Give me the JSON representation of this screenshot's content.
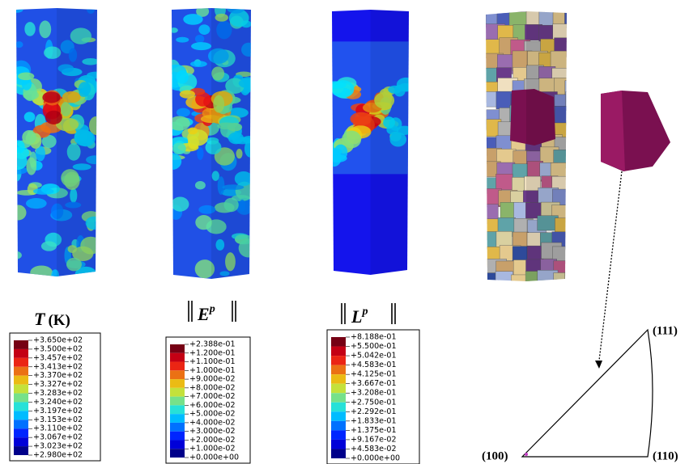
{
  "panels": [
    {
      "title": {
        "symbol": "T",
        "unit": "(K)"
      },
      "legend": [
        "+3.650e+02",
        "+3.500e+02",
        "+3.457e+02",
        "+3.413e+02",
        "+3.370e+02",
        "+3.327e+02",
        "+3.283e+02",
        "+3.240e+02",
        "+3.197e+02",
        "+3.153e+02",
        "+3.110e+02",
        "+3.067e+02",
        "+3.023e+02",
        "+2.980e+02"
      ]
    },
    {
      "title": {
        "symbol": "E",
        "superscript": "p"
      },
      "legend": [
        "+2.388e-01",
        "+1.200e-01",
        "+1.100e-01",
        "+1.000e-01",
        "+9.000e-02",
        "+8.000e-02",
        "+7.000e-02",
        "+6.000e-02",
        "+5.000e-02",
        "+4.000e-02",
        "+3.000e-02",
        "+2.000e-02",
        "+1.000e-02",
        "+0.000e+00"
      ]
    },
    {
      "title": {
        "symbol": "L",
        "superscript": "p"
      },
      "legend": [
        "+8.188e-01",
        "+5.500e-01",
        "+5.042e-01",
        "+4.583e-01",
        "+4.125e-01",
        "+3.667e-01",
        "+3.208e-01",
        "+2.750e-01",
        "+2.292e-01",
        "+1.833e-01",
        "+1.375e-01",
        "+9.167e-02",
        "+4.583e-02",
        "+0.000e+00"
      ]
    }
  ],
  "pole_figure": {
    "labels": [
      "(100)",
      "(110)",
      "(111)"
    ]
  }
}
